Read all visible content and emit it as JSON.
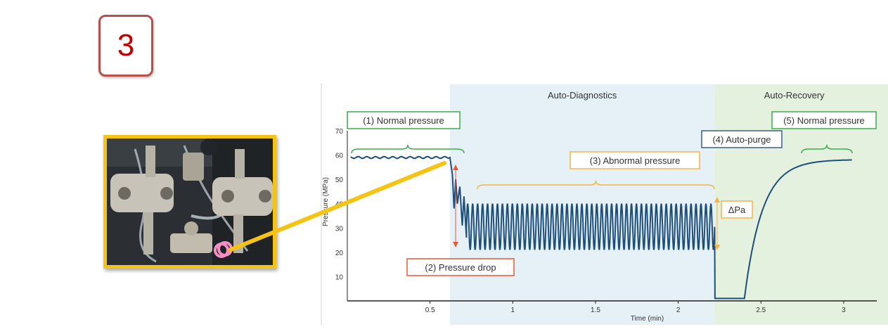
{
  "step_badge": {
    "number": "3"
  },
  "photo": {
    "description_icon": "pump-hardware-photo-icon",
    "highlight_color": "#f48fc4",
    "frame_color": "#f4c314"
  },
  "colors": {
    "trace": "#1d4f7a",
    "diagnostics_bg": "#e6f0f7",
    "recovery_bg": "#e5f1df",
    "label_green": "#3daa4e",
    "label_orange": "#f4b44a",
    "label_red": "#e8583a",
    "label_blue": "#3b5f88",
    "connector": "#f4c314"
  },
  "chart_data": {
    "type": "line",
    "xlabel": "Time (min)",
    "ylabel": "Pressure (MPa)",
    "xlim": [
      0,
      3.2
    ],
    "ylim": [
      0,
      70
    ],
    "xticks": [
      0.5,
      1,
      1.5,
      2,
      2.5,
      3
    ],
    "yticks": [
      10,
      20,
      30,
      40,
      50,
      60,
      70
    ],
    "regions": [
      {
        "label": "Auto-Diagnostics",
        "x": [
          0.62,
          2.22
        ]
      },
      {
        "label": "Auto-Recovery",
        "x": [
          2.22,
          3.2
        ]
      }
    ],
    "annotations": {
      "normal1": "(1) Normal pressure",
      "drop": "(2) Pressure drop",
      "abnormal": "(3) Abnormal pressure",
      "purge": "(4) Auto-purge",
      "normal2": "(5) Normal pressure",
      "delta": "ΔPa"
    },
    "phases": {
      "normal_pressure_mpa": 59,
      "drop_time_min": 0.62,
      "oscillation": {
        "start_min": 0.72,
        "end_min": 2.22,
        "min_mpa": 21,
        "max_mpa": 40,
        "cycles": 50
      },
      "purge": {
        "start_min": 2.22,
        "end_min": 2.4,
        "pressure_mpa": 1
      },
      "recovery": {
        "start_min": 2.4,
        "end_min": 3.05,
        "final_mpa": 58
      }
    }
  }
}
